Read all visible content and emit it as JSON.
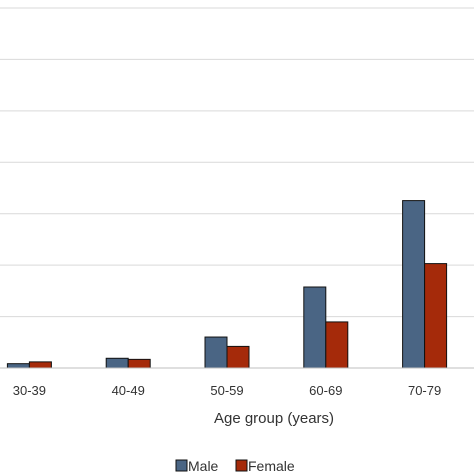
{
  "chart_data": {
    "type": "bar",
    "categories": [
      "30-39",
      "40-49",
      "50-59",
      "60-69",
      "70-79"
    ],
    "series": [
      {
        "name": "Male",
        "color": "#4a6584",
        "values": [
          1.2,
          2.7,
          8.6,
          22.5,
          46.5
        ]
      },
      {
        "name": "Female",
        "color": "#a52a0a",
        "values": [
          1.7,
          2.4,
          6.0,
          12.8,
          29.0
        ]
      }
    ],
    "xlabel": "Age group (years)",
    "ylim": [
      0,
      100
    ],
    "grid": true,
    "legend_position": "bottom"
  }
}
